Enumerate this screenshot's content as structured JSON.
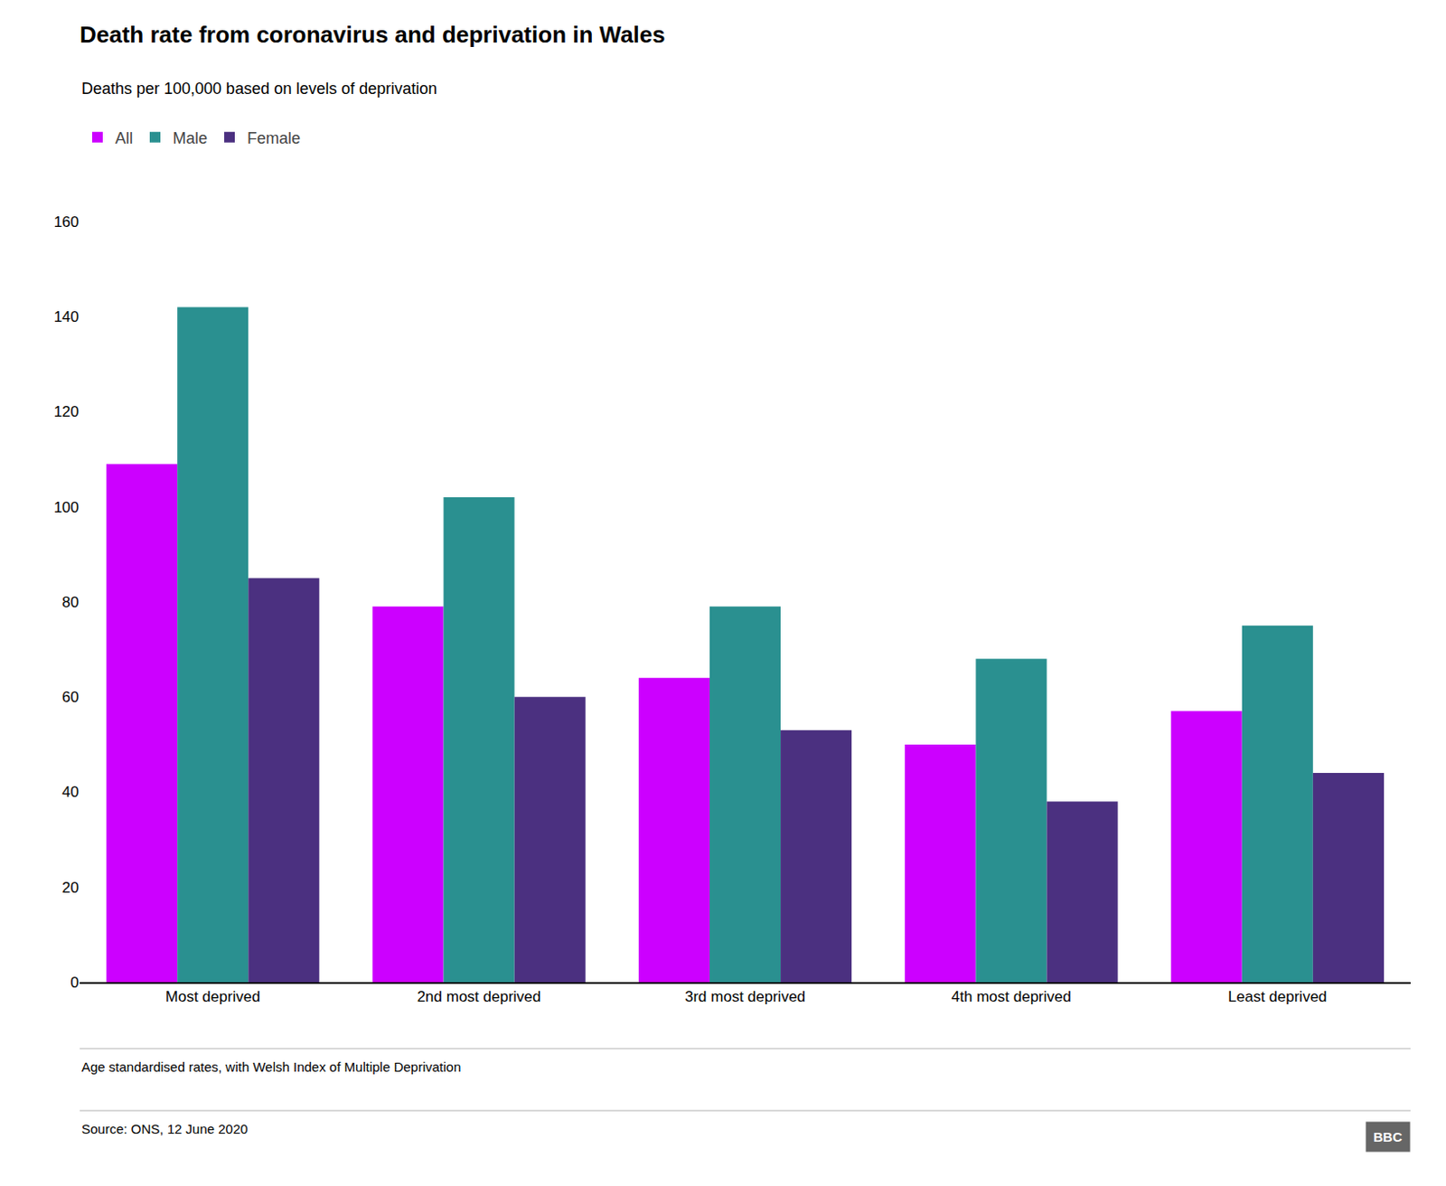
{
  "chart_data": {
    "type": "bar",
    "title": "Death rate from coronavirus and deprivation in Wales",
    "subtitle": "Deaths per 100,000 based on levels of deprivation",
    "footnote": "Age standardised rates, with Welsh Index of Multiple Deprivation",
    "source": "Source: ONS, 12 June 2020",
    "annotations": [
      "BBC"
    ],
    "categories": [
      "Most deprived",
      "2nd most deprived",
      "3rd most deprived",
      "4th most deprived",
      "Least deprived"
    ],
    "series": [
      {
        "name": "All",
        "color": "#cc00ff",
        "values": [
          109,
          79,
          64,
          50,
          57
        ]
      },
      {
        "name": "Male",
        "color": "#2a9090",
        "values": [
          142,
          102,
          79,
          68,
          75
        ]
      },
      {
        "name": "Female",
        "color": "#4b3080",
        "values": [
          85,
          60,
          53,
          38,
          44
        ]
      }
    ],
    "ylim": [
      0,
      160
    ],
    "yticks": [
      0,
      20,
      40,
      60,
      80,
      100,
      120,
      140,
      160
    ],
    "grid": false,
    "legend": "upper left"
  }
}
